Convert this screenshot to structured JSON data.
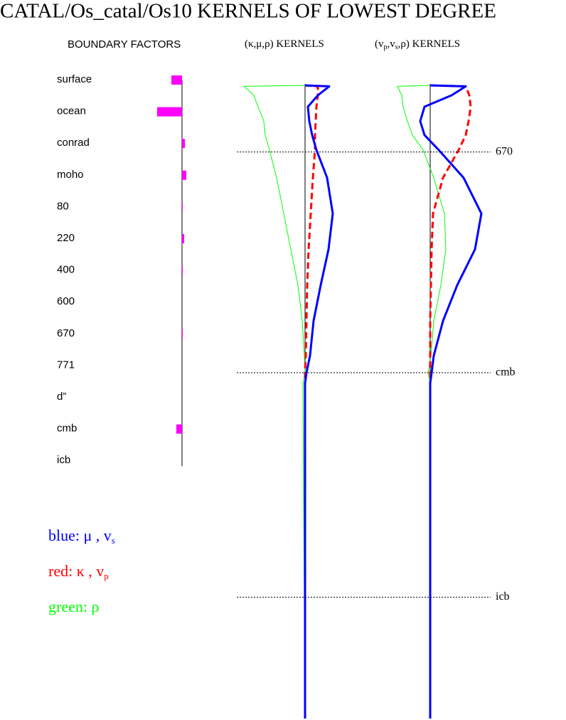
{
  "title": "CATAL/Os_catal/Os10 KERNELS OF LOWEST DEGREE",
  "chart_data": [
    {
      "type": "bar",
      "orientation": "horizontal",
      "title": "BOUNDARY FACTORS",
      "categories": [
        "surface",
        "ocean",
        "conrad",
        "moho",
        "80",
        "220",
        "400",
        "600",
        "670",
        "771",
        "d”",
        "cmb",
        "icb"
      ],
      "values": [
        -15,
        -35,
        4,
        6,
        1,
        3,
        1,
        0,
        1,
        0,
        0,
        -8,
        0
      ],
      "xlim": [
        -40,
        40
      ],
      "color": "#ff00ff"
    },
    {
      "type": "line",
      "title_parts": [
        "(κ,μ,ρ)  KERNELS"
      ],
      "y": [
        0,
        10,
        100,
        215,
        360,
        500,
        650,
        930,
        1290,
        1650,
        2010,
        2370,
        2720,
        2891,
        3000,
        6371
      ],
      "ylim": [
        0,
        6371
      ],
      "xlim": [
        -1,
        1
      ],
      "series": [
        {
          "color": "#00ff00",
          "style": "solid",
          "width": 1,
          "values": [
            0,
            -0.86,
            -0.72,
            -0.66,
            -0.58,
            -0.56,
            -0.5,
            -0.4,
            -0.3,
            -0.2,
            -0.1,
            -0.04,
            -0.01,
            0,
            -0.03,
            0
          ]
        },
        {
          "color": "#ff0000",
          "style": "dashed",
          "width": 3,
          "values": [
            0,
            0.18,
            0.18,
            0.16,
            0.15,
            0.14,
            0.14,
            0.11,
            0.08,
            0.05,
            0.03,
            0.02,
            0.01,
            0,
            0,
            0
          ]
        },
        {
          "color": "#0000ff",
          "style": "solid",
          "width": 3,
          "values": [
            0,
            0.34,
            0.18,
            0.04,
            0.06,
            0.1,
            0.16,
            0.31,
            0.39,
            0.33,
            0.22,
            0.12,
            0.07,
            0.02,
            0,
            0
          ]
        }
      ]
    },
    {
      "type": "line",
      "title_parts": [
        "(v",
        "p",
        ",v",
        "s",
        ",ρ)  KERNELS"
      ],
      "y": [
        0,
        10,
        100,
        215,
        360,
        500,
        650,
        930,
        1290,
        1650,
        2010,
        2370,
        2720,
        2891,
        3000,
        6371
      ],
      "ylim": [
        0,
        6371
      ],
      "xlim": [
        -1,
        1
      ],
      "series": [
        {
          "color": "#00ff00",
          "style": "solid",
          "width": 1,
          "values": [
            0,
            -0.46,
            -0.4,
            -0.38,
            -0.32,
            -0.25,
            -0.1,
            0.05,
            0.2,
            0.22,
            0.15,
            0.05,
            0.01,
            -0.03,
            0,
            0
          ]
        },
        {
          "color": "#ff0000",
          "style": "dashed",
          "width": 3,
          "values": [
            0,
            0.5,
            0.55,
            0.57,
            0.54,
            0.5,
            0.4,
            0.18,
            0.04,
            0.02,
            0.01,
            0,
            0,
            0,
            0,
            0
          ]
        },
        {
          "color": "#0000ff",
          "style": "solid",
          "width": 3,
          "values": [
            0,
            0.5,
            0.3,
            -0.08,
            -0.14,
            -0.08,
            0.12,
            0.47,
            0.72,
            0.63,
            0.38,
            0.18,
            0.05,
            0.02,
            0,
            0
          ]
        }
      ]
    }
  ],
  "reference_lines": [
    {
      "value": 670,
      "label": "670"
    },
    {
      "value": 2891,
      "label": "cmb"
    },
    {
      "value": 5150,
      "label": "icb"
    }
  ],
  "legend": [
    {
      "color": "#0000ff",
      "text": "blue:  μ , v",
      "sub": "s"
    },
    {
      "color": "#ff0000",
      "text": "red:  κ , v",
      "sub": "p"
    },
    {
      "color": "#00ff00",
      "text": "green:  ρ"
    }
  ]
}
